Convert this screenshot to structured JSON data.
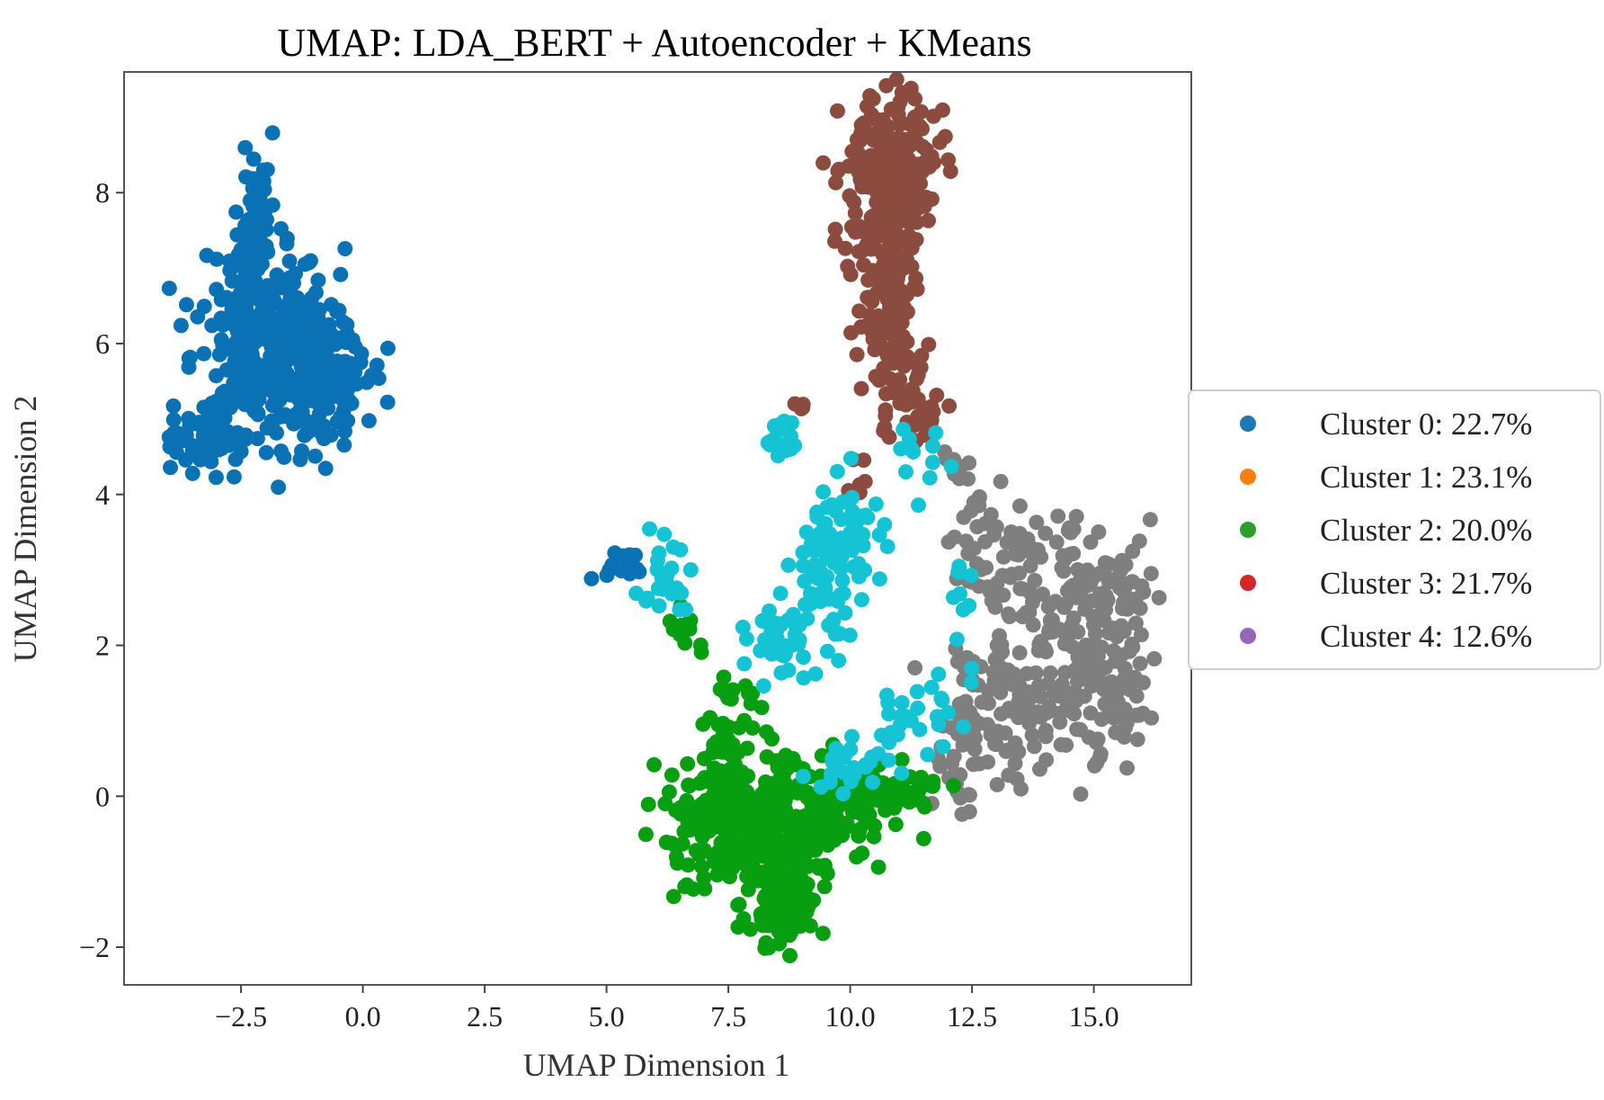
{
  "chart_data": {
    "type": "scatter",
    "title": "UMAP: LDA_BERT + Autoencoder + KMeans",
    "xlabel": "UMAP Dimension 1",
    "ylabel": "UMAP Dimension 2",
    "xlim": [
      -4.9,
      17.0
    ],
    "ylim": [
      -2.5,
      9.6
    ],
    "xticks": [
      -2.5,
      0.0,
      2.5,
      5.0,
      7.5,
      10.0,
      12.5,
      15.0
    ],
    "xtick_labels": [
      "−2.5",
      "0.0",
      "2.5",
      "5.0",
      "7.5",
      "10.0",
      "12.5",
      "15.0"
    ],
    "yticks": [
      -2,
      0,
      2,
      4,
      6,
      8
    ],
    "ytick_labels": [
      "−2",
      "0",
      "2",
      "4",
      "6",
      "8"
    ],
    "grid": false,
    "legend_position": "outside-right",
    "legend": [
      {
        "label": "Cluster 0: 22.7%",
        "color": "#1f77b4"
      },
      {
        "label": "Cluster 1: 23.1%",
        "color": "#ff7f0e"
      },
      {
        "label": "Cluster 2: 20.0%",
        "color": "#2ca02c"
      },
      {
        "label": "Cluster 3: 21.7%",
        "color": "#d62728"
      },
      {
        "label": "Cluster 4: 12.6%",
        "color": "#9467bd"
      }
    ],
    "point_groups": [
      {
        "color": "#0a72b4",
        "seed": 11,
        "blobs": [
          {
            "cx": -2.2,
            "cy": 7.8,
            "sx": 0.15,
            "sy": 0.5,
            "n": 45
          },
          {
            "cx": -2.0,
            "cy": 6.2,
            "sx": 0.7,
            "sy": 0.6,
            "n": 240
          },
          {
            "cx": -1.3,
            "cy": 5.6,
            "sx": 0.65,
            "sy": 0.5,
            "n": 180
          },
          {
            "cx": -3.1,
            "cy": 4.8,
            "sx": 0.4,
            "sy": 0.25,
            "n": 70
          },
          {
            "cx": -0.6,
            "cy": 5.5,
            "sx": 0.3,
            "sy": 0.3,
            "n": 40
          },
          {
            "cx": 5.4,
            "cy": 3.0,
            "sx": 0.25,
            "sy": 0.1,
            "n": 15
          }
        ]
      },
      {
        "color": "#8b4c3f",
        "seed": 23,
        "blobs": [
          {
            "cx": 10.8,
            "cy": 8.5,
            "sx": 0.5,
            "sy": 0.4,
            "n": 150
          },
          {
            "cx": 10.7,
            "cy": 7.4,
            "sx": 0.4,
            "sy": 0.5,
            "n": 110
          },
          {
            "cx": 10.9,
            "cy": 6.2,
            "sx": 0.3,
            "sy": 0.6,
            "n": 90
          },
          {
            "cx": 11.4,
            "cy": 5.0,
            "sx": 0.35,
            "sy": 0.2,
            "n": 25
          },
          {
            "cx": 10.1,
            "cy": 4.1,
            "sx": 0.1,
            "sy": 0.15,
            "n": 6
          },
          {
            "cx": 8.9,
            "cy": 5.1,
            "sx": 0.1,
            "sy": 0.1,
            "n": 4
          }
        ]
      },
      {
        "color": "#7f7f7f",
        "seed": 37,
        "blobs": [
          {
            "cx": 13.2,
            "cy": 3.2,
            "sx": 0.5,
            "sy": 0.4,
            "n": 60
          },
          {
            "cx": 14.9,
            "cy": 2.6,
            "sx": 0.6,
            "sy": 0.6,
            "n": 120
          },
          {
            "cx": 13.5,
            "cy": 1.5,
            "sx": 0.7,
            "sy": 0.5,
            "n": 110
          },
          {
            "cx": 15.3,
            "cy": 1.2,
            "sx": 0.4,
            "sy": 0.4,
            "n": 60
          },
          {
            "cx": 12.5,
            "cy": 0.6,
            "sx": 0.4,
            "sy": 0.4,
            "n": 45
          },
          {
            "cx": 12.2,
            "cy": 4.4,
            "sx": 0.2,
            "sy": 0.2,
            "n": 10
          }
        ]
      },
      {
        "color": "#079e10",
        "seed": 41,
        "blobs": [
          {
            "cx": 7.5,
            "cy": -0.3,
            "sx": 0.7,
            "sy": 0.5,
            "n": 220
          },
          {
            "cx": 8.7,
            "cy": -0.7,
            "sx": 0.5,
            "sy": 0.6,
            "n": 180
          },
          {
            "cx": 8.5,
            "cy": -1.5,
            "sx": 0.3,
            "sy": 0.3,
            "n": 60
          },
          {
            "cx": 9.8,
            "cy": -0.1,
            "sx": 0.6,
            "sy": 0.3,
            "n": 110
          },
          {
            "cx": 11.1,
            "cy": 0.05,
            "sx": 0.5,
            "sy": 0.15,
            "n": 40
          },
          {
            "cx": 7.6,
            "cy": 1.0,
            "sx": 0.3,
            "sy": 0.4,
            "n": 30
          },
          {
            "cx": 6.5,
            "cy": 2.2,
            "sx": 0.25,
            "sy": 0.2,
            "n": 10
          }
        ]
      },
      {
        "color": "#14c4d4",
        "seed": 53,
        "blobs": [
          {
            "cx": 9.5,
            "cy": 3.0,
            "sx": 0.35,
            "sy": 0.6,
            "n": 70
          },
          {
            "cx": 10.2,
            "cy": 3.6,
            "sx": 0.3,
            "sy": 0.35,
            "n": 30
          },
          {
            "cx": 8.6,
            "cy": 2.0,
            "sx": 0.35,
            "sy": 0.3,
            "n": 40
          },
          {
            "cx": 8.6,
            "cy": 4.7,
            "sx": 0.2,
            "sy": 0.2,
            "n": 18
          },
          {
            "cx": 6.2,
            "cy": 2.8,
            "sx": 0.35,
            "sy": 0.3,
            "n": 25
          },
          {
            "cx": 11.3,
            "cy": 1.1,
            "sx": 0.5,
            "sy": 0.3,
            "n": 25
          },
          {
            "cx": 10.0,
            "cy": 0.3,
            "sx": 0.5,
            "sy": 0.2,
            "n": 25
          },
          {
            "cx": 11.5,
            "cy": 4.5,
            "sx": 0.3,
            "sy": 0.3,
            "n": 12
          },
          {
            "cx": 12.4,
            "cy": 2.2,
            "sx": 0.2,
            "sy": 0.5,
            "n": 12
          }
        ]
      }
    ]
  }
}
